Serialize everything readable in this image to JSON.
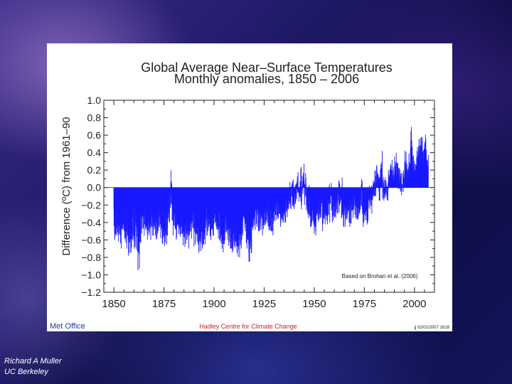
{
  "slide": {
    "credit_name": "Richard A Muller",
    "credit_affiliation": "UC Berkeley"
  },
  "figure": {
    "footer_left": "Met Office",
    "footer_center": "Hadley Centre for Climate Change",
    "footer_right": "jj 02/02/2007 1618",
    "note": "Based on Brohan et al. (2006)",
    "colors": {
      "bars": "#1a1aff",
      "footer_left": "#1a3aa0",
      "footer_center": "#cc2222"
    }
  },
  "chart_data": {
    "type": "bar",
    "title": "Global Average Near–Surface Temperatures",
    "subtitle": "Monthly anomalies, 1850 – 2006",
    "xlabel": "",
    "ylabel": "Difference (ºC) from 1961–90",
    "xlim": [
      1845,
      2010
    ],
    "ylim": [
      -1.2,
      1.0
    ],
    "x_ticks": [
      1850,
      1875,
      1900,
      1925,
      1950,
      1975,
      2000
    ],
    "y_ticks": [
      1.0,
      0.8,
      0.6,
      0.4,
      0.2,
      0.0,
      -0.2,
      -0.4,
      -0.6,
      -0.8,
      -1.0,
      -1.2
    ],
    "y_tick_labels": [
      "1.0",
      "0.8",
      "0.6",
      "0.4",
      "0.2",
      "0.0",
      "−0.2",
      "−0.4",
      "−0.6",
      "−0.8",
      "−1.0",
      "−1.2"
    ],
    "grid": false,
    "series": [
      {
        "resolution": "yearly (monthly envelope approximated)",
        "x": [
          1850,
          1851,
          1852,
          1853,
          1854,
          1855,
          1856,
          1857,
          1858,
          1859,
          1860,
          1861,
          1862,
          1863,
          1864,
          1865,
          1866,
          1867,
          1868,
          1869,
          1870,
          1871,
          1872,
          1873,
          1874,
          1875,
          1876,
          1877,
          1878,
          1879,
          1880,
          1881,
          1882,
          1883,
          1884,
          1885,
          1886,
          1887,
          1888,
          1889,
          1890,
          1891,
          1892,
          1893,
          1894,
          1895,
          1896,
          1897,
          1898,
          1899,
          1900,
          1901,
          1902,
          1903,
          1904,
          1905,
          1906,
          1907,
          1908,
          1909,
          1910,
          1911,
          1912,
          1913,
          1914,
          1915,
          1916,
          1917,
          1918,
          1919,
          1920,
          1921,
          1922,
          1923,
          1924,
          1925,
          1926,
          1927,
          1928,
          1929,
          1930,
          1931,
          1932,
          1933,
          1934,
          1935,
          1936,
          1937,
          1938,
          1939,
          1940,
          1941,
          1942,
          1943,
          1944,
          1945,
          1946,
          1947,
          1948,
          1949,
          1950,
          1951,
          1952,
          1953,
          1954,
          1955,
          1956,
          1957,
          1958,
          1959,
          1960,
          1961,
          1962,
          1963,
          1964,
          1965,
          1966,
          1967,
          1968,
          1969,
          1970,
          1971,
          1972,
          1973,
          1974,
          1975,
          1976,
          1977,
          1978,
          1979,
          1980,
          1981,
          1982,
          1983,
          1984,
          1985,
          1986,
          1987,
          1988,
          1989,
          1990,
          1991,
          1992,
          1993,
          1994,
          1995,
          1996,
          1997,
          1998,
          1999,
          2000,
          2001,
          2002,
          2003,
          2004,
          2005,
          2006
        ],
        "max": [
          -0.05,
          -0.1,
          -0.05,
          -0.1,
          -0.05,
          -0.1,
          -0.1,
          -0.2,
          -0.1,
          0.05,
          -0.05,
          -0.1,
          -0.15,
          -0.05,
          0.15,
          -0.05,
          -0.05,
          -0.05,
          0.0,
          -0.05,
          -0.05,
          -0.1,
          -0.05,
          -0.1,
          -0.15,
          -0.1,
          -0.15,
          0.1,
          0.35,
          -0.05,
          0.0,
          -0.05,
          -0.1,
          -0.1,
          -0.2,
          -0.15,
          -0.1,
          -0.15,
          -0.05,
          0.0,
          -0.15,
          -0.1,
          -0.15,
          -0.15,
          -0.15,
          -0.1,
          -0.05,
          -0.05,
          -0.1,
          -0.05,
          0.0,
          -0.05,
          -0.1,
          -0.15,
          -0.2,
          -0.15,
          -0.1,
          -0.2,
          -0.2,
          -0.25,
          -0.2,
          -0.2,
          -0.2,
          -0.15,
          -0.05,
          -0.05,
          -0.15,
          -0.25,
          -0.2,
          -0.1,
          -0.1,
          -0.05,
          -0.1,
          -0.1,
          -0.1,
          -0.05,
          0.0,
          -0.05,
          -0.05,
          -0.1,
          0.0,
          0.0,
          0.0,
          -0.1,
          -0.05,
          -0.05,
          0.05,
          0.1,
          0.1,
          0.15,
          0.2,
          0.3,
          0.2,
          0.3,
          0.35,
          0.25,
          0.05,
          0.1,
          -0.05,
          0.0,
          -0.1,
          0.05,
          0.05,
          0.15,
          -0.05,
          -0.05,
          -0.05,
          0.1,
          0.15,
          0.05,
          0.05,
          0.1,
          0.15,
          0.15,
          -0.05,
          0.0,
          0.05,
          0.0,
          0.0,
          0.15,
          0.1,
          0.0,
          0.05,
          0.2,
          -0.05,
          0.0,
          -0.05,
          0.15,
          0.1,
          0.15,
          0.25,
          0.35,
          0.2,
          0.45,
          0.15,
          0.15,
          0.15,
          0.35,
          0.45,
          0.35,
          0.45,
          0.4,
          0.3,
          0.25,
          0.3,
          0.5,
          0.35,
          0.5,
          0.75,
          0.4,
          0.45,
          0.55,
          0.6,
          0.6,
          0.55,
          0.65,
          0.5
        ],
        "min": [
          -0.6,
          -0.55,
          -0.65,
          -0.7,
          -0.6,
          -0.65,
          -0.7,
          -0.8,
          -0.75,
          -0.6,
          -0.7,
          -0.75,
          -0.95,
          -0.7,
          -0.6,
          -0.55,
          -0.6,
          -0.55,
          -0.6,
          -0.55,
          -0.55,
          -0.6,
          -0.5,
          -0.6,
          -0.65,
          -0.7,
          -0.65,
          -0.5,
          -0.3,
          -0.55,
          -0.55,
          -0.6,
          -0.55,
          -0.6,
          -0.75,
          -0.7,
          -0.6,
          -0.7,
          -0.6,
          -0.55,
          -0.7,
          -0.65,
          -0.75,
          -0.75,
          -0.7,
          -0.65,
          -0.55,
          -0.55,
          -0.6,
          -0.55,
          -0.45,
          -0.5,
          -0.6,
          -0.7,
          -0.75,
          -0.65,
          -0.6,
          -0.75,
          -0.7,
          -0.75,
          -0.7,
          -0.75,
          -0.8,
          -0.7,
          -0.55,
          -0.5,
          -0.7,
          -0.85,
          -0.75,
          -0.55,
          -0.5,
          -0.45,
          -0.5,
          -0.55,
          -0.55,
          -0.45,
          -0.4,
          -0.5,
          -0.5,
          -0.55,
          -0.4,
          -0.4,
          -0.35,
          -0.45,
          -0.4,
          -0.4,
          -0.35,
          -0.25,
          -0.25,
          -0.25,
          -0.3,
          -0.15,
          -0.2,
          -0.25,
          -0.1,
          -0.2,
          -0.35,
          -0.35,
          -0.45,
          -0.45,
          -0.55,
          -0.45,
          -0.4,
          -0.35,
          -0.5,
          -0.45,
          -0.5,
          -0.4,
          -0.35,
          -0.4,
          -0.4,
          -0.35,
          -0.35,
          -0.35,
          -0.45,
          -0.45,
          -0.4,
          -0.45,
          -0.45,
          -0.35,
          -0.35,
          -0.4,
          -0.4,
          -0.25,
          -0.45,
          -0.4,
          -0.45,
          -0.25,
          -0.3,
          -0.2,
          -0.15,
          -0.05,
          -0.15,
          0.05,
          -0.15,
          -0.15,
          -0.15,
          0.0,
          0.05,
          0.0,
          0.05,
          0.05,
          -0.05,
          -0.1,
          -0.05,
          0.1,
          0.05,
          0.1,
          0.3,
          0.05,
          0.05,
          0.15,
          0.25,
          0.25,
          0.2,
          0.3,
          0.2
        ]
      }
    ]
  }
}
